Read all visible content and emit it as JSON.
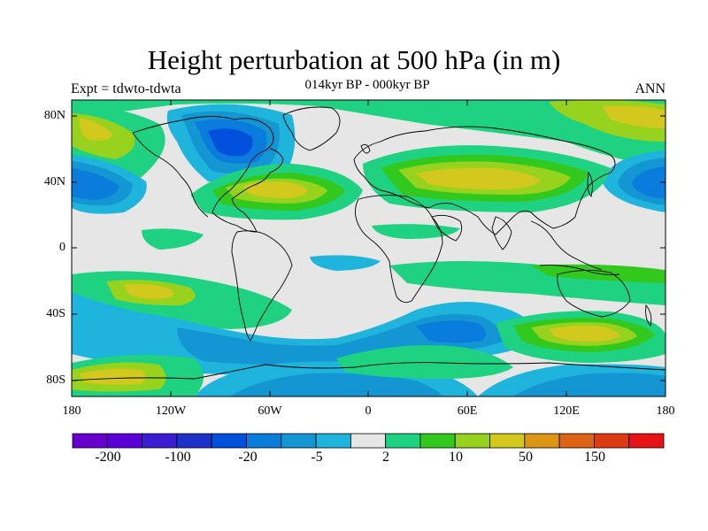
{
  "title": "Height perturbation at 500 hPa (in m)",
  "subtitle": "014kyr BP - 000kyr BP",
  "left_label": "Expt = tdwto-tdwta",
  "right_label": "ANN",
  "lat_ticks": [
    "80N",
    "40N",
    "0",
    "40S",
    "80S"
  ],
  "lon_ticks": [
    "180",
    "120W",
    "60W",
    "0",
    "60E",
    "120E",
    "180"
  ],
  "colorbar": {
    "colors": [
      "#6600cc",
      "#5a00d6",
      "#3c1ed2",
      "#1e32c8",
      "#0050dc",
      "#0a7ddc",
      "#1496d2",
      "#1eb4dc",
      "#e6e6e6",
      "#1ed282",
      "#32c81e",
      "#96d21e",
      "#d2c81e",
      "#dc9614",
      "#dc6414",
      "#dc3c14",
      "#e61414"
    ],
    "labels": [
      "-200",
      "-100",
      "-20",
      "-5",
      "2",
      "10",
      "50",
      "150"
    ]
  },
  "colors": {
    "neutral": "#e6e6e6",
    "light_green": "#1ed282",
    "green": "#32c81e",
    "yellow_green": "#96d21e",
    "yellow": "#d2c81e",
    "light_blue": "#1eb4dc",
    "blue": "#1496d2",
    "mid_blue": "#0a7ddc",
    "dark_blue": "#0050dc"
  }
}
